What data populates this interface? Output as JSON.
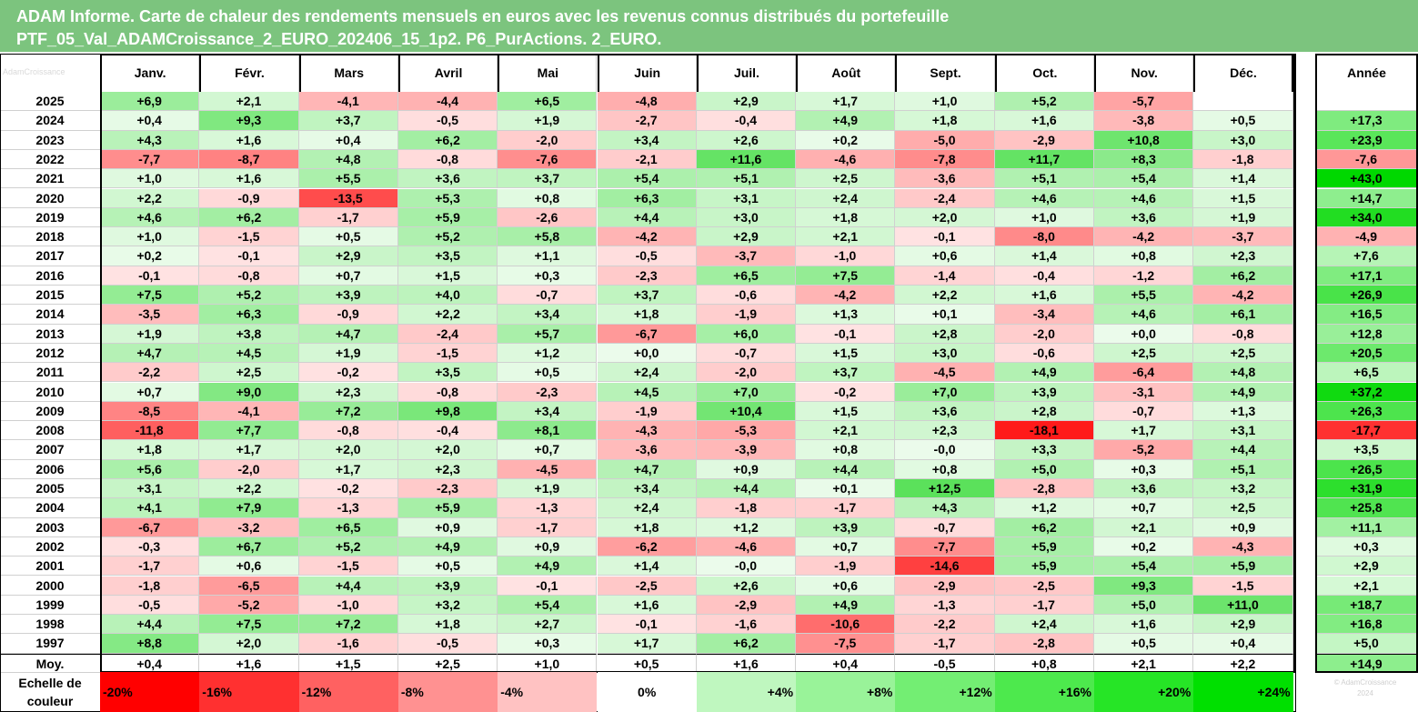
{
  "title": {
    "line1": "ADAM Informe. Carte de chaleur des rendements mensuels en euros avec les revenus connus distribués du portefeuille",
    "line2": "PTF_05_Val_ADAMCroissance_2_EURO_202406_15_1p2. P6_PurActions. 2_EURO."
  },
  "watermark": "AdamCroissance",
  "chart_data": {
    "type": "heatmap",
    "columns": [
      "Janv.",
      "Févr.",
      "Mars",
      "Avril",
      "Mai",
      "Juin",
      "Juil.",
      "Août",
      "Sept.",
      "Oct.",
      "Nov.",
      "Déc.",
      "Année"
    ],
    "rows": [
      {
        "year": "2025",
        "values": [
          "+6,9",
          "+2,1",
          "-4,1",
          "-4,4",
          "+6,5",
          "-4,8",
          "+2,9",
          "+1,7",
          "+1,0",
          "+5,2",
          "-5,7",
          "",
          ""
        ]
      },
      {
        "year": "2024",
        "values": [
          "+0,4",
          "+9,3",
          "+3,7",
          "-0,5",
          "+1,9",
          "-2,7",
          "-0,4",
          "+4,9",
          "+1,8",
          "+1,6",
          "-3,8",
          "+0,5",
          "+17,3"
        ]
      },
      {
        "year": "2023",
        "values": [
          "+4,3",
          "+1,6",
          "+0,4",
          "+6,2",
          "-2,0",
          "+3,4",
          "+2,6",
          "+0,2",
          "-5,0",
          "-2,9",
          "+10,8",
          "+3,0",
          "+23,9"
        ]
      },
      {
        "year": "2022",
        "values": [
          "-7,7",
          "-8,7",
          "+4,8",
          "-0,8",
          "-7,6",
          "-2,1",
          "+11,6",
          "-4,6",
          "-7,8",
          "+11,7",
          "+8,3",
          "-1,8",
          "-7,6"
        ]
      },
      {
        "year": "2021",
        "values": [
          "+1,0",
          "+1,6",
          "+5,5",
          "+3,6",
          "+3,7",
          "+5,4",
          "+5,1",
          "+2,5",
          "-3,6",
          "+5,1",
          "+5,4",
          "+1,4",
          "+43,0"
        ]
      },
      {
        "year": "2020",
        "values": [
          "+2,2",
          "-0,9",
          "-13,5",
          "+5,3",
          "+0,8",
          "+6,3",
          "+3,1",
          "+2,4",
          "-2,4",
          "+4,6",
          "+4,6",
          "+1,5",
          "+14,7"
        ]
      },
      {
        "year": "2019",
        "values": [
          "+4,6",
          "+6,2",
          "-1,7",
          "+5,9",
          "-2,6",
          "+4,4",
          "+3,0",
          "+1,8",
          "+2,0",
          "+1,0",
          "+3,6",
          "+1,9",
          "+34,0"
        ]
      },
      {
        "year": "2018",
        "values": [
          "+1,0",
          "-1,5",
          "+0,5",
          "+5,2",
          "+5,8",
          "-4,2",
          "+2,9",
          "+2,1",
          "-0,1",
          "-8,0",
          "-4,2",
          "-3,7",
          "-4,9"
        ]
      },
      {
        "year": "2017",
        "values": [
          "+0,2",
          "-0,1",
          "+2,9",
          "+3,5",
          "+1,1",
          "-0,5",
          "-3,7",
          "-1,0",
          "+0,6",
          "+1,4",
          "+0,8",
          "+2,3",
          "+7,6"
        ]
      },
      {
        "year": "2016",
        "values": [
          "-0,1",
          "-0,8",
          "+0,7",
          "+1,5",
          "+0,3",
          "-2,3",
          "+6,5",
          "+7,5",
          "-1,4",
          "-0,4",
          "-1,2",
          "+6,2",
          "+17,1"
        ]
      },
      {
        "year": "2015",
        "values": [
          "+7,5",
          "+5,2",
          "+3,9",
          "+4,0",
          "-0,7",
          "+3,7",
          "-0,6",
          "-4,2",
          "+2,2",
          "+1,6",
          "+5,5",
          "-4,2",
          "+26,9"
        ]
      },
      {
        "year": "2014",
        "values": [
          "-3,5",
          "+6,3",
          "-0,9",
          "+2,2",
          "+3,4",
          "+1,8",
          "-1,9",
          "+1,3",
          "+0,1",
          "-3,4",
          "+4,6",
          "+6,1",
          "+16,5"
        ]
      },
      {
        "year": "2013",
        "values": [
          "+1,9",
          "+3,8",
          "+4,7",
          "-2,4",
          "+5,7",
          "-6,7",
          "+6,0",
          "-0,1",
          "+2,8",
          "-2,0",
          "+0,0",
          "-0,8",
          "+12,8"
        ]
      },
      {
        "year": "2012",
        "values": [
          "+4,7",
          "+4,5",
          "+1,9",
          "-1,5",
          "+1,2",
          "+0,0",
          "-0,7",
          "+1,5",
          "+3,0",
          "-0,6",
          "+2,5",
          "+2,5",
          "+20,5"
        ]
      },
      {
        "year": "2011",
        "values": [
          "-2,2",
          "+2,5",
          "-0,2",
          "+3,5",
          "+0,5",
          "+2,4",
          "-2,0",
          "+3,7",
          "-4,5",
          "+4,9",
          "-6,4",
          "+4,8",
          "+6,5"
        ]
      },
      {
        "year": "2010",
        "values": [
          "+0,7",
          "+9,0",
          "+2,3",
          "-0,8",
          "-2,3",
          "+4,5",
          "+7,0",
          "-0,2",
          "+7,0",
          "+3,9",
          "-3,1",
          "+4,9",
          "+37,2"
        ]
      },
      {
        "year": "2009",
        "values": [
          "-8,5",
          "-4,1",
          "+7,2",
          "+9,8",
          "+3,4",
          "-1,9",
          "+10,4",
          "+1,5",
          "+3,6",
          "+2,8",
          "-0,7",
          "+1,3",
          "+26,3"
        ]
      },
      {
        "year": "2008",
        "values": [
          "-11,8",
          "+7,7",
          "-0,8",
          "-0,4",
          "+8,1",
          "-4,3",
          "-5,3",
          "+2,1",
          "+2,3",
          "-18,1",
          "+1,7",
          "+3,1",
          "-17,7"
        ]
      },
      {
        "year": "2007",
        "values": [
          "+1,8",
          "+1,7",
          "+2,0",
          "+2,0",
          "+0,7",
          "-3,6",
          "-3,9",
          "+0,8",
          "-0,0",
          "+3,3",
          "-5,2",
          "+4,4",
          "+3,5"
        ]
      },
      {
        "year": "2006",
        "values": [
          "+5,6",
          "-2,0",
          "+1,7",
          "+2,3",
          "-4,5",
          "+4,7",
          "+0,9",
          "+4,4",
          "+0,8",
          "+5,0",
          "+0,3",
          "+5,1",
          "+26,5"
        ]
      },
      {
        "year": "2005",
        "values": [
          "+3,1",
          "+2,2",
          "-0,2",
          "-2,3",
          "+1,9",
          "+3,4",
          "+4,4",
          "+0,1",
          "+12,5",
          "-2,8",
          "+3,6",
          "+3,2",
          "+31,9"
        ]
      },
      {
        "year": "2004",
        "values": [
          "+4,1",
          "+7,9",
          "-1,3",
          "+5,9",
          "-1,3",
          "+2,4",
          "-1,8",
          "-1,7",
          "+4,3",
          "+1,2",
          "+0,7",
          "+2,5",
          "+25,8"
        ]
      },
      {
        "year": "2003",
        "values": [
          "-6,7",
          "-3,2",
          "+6,5",
          "+0,9",
          "-1,7",
          "+1,8",
          "+1,2",
          "+3,9",
          "-0,7",
          "+6,2",
          "+2,1",
          "+0,9",
          "+11,1"
        ]
      },
      {
        "year": "2002",
        "values": [
          "-0,3",
          "+6,7",
          "+5,2",
          "+4,9",
          "+0,9",
          "-6,2",
          "-4,6",
          "+0,7",
          "-7,7",
          "+5,9",
          "+0,2",
          "-4,3",
          "+0,3"
        ]
      },
      {
        "year": "2001",
        "values": [
          "-1,7",
          "+0,6",
          "-1,5",
          "+0,5",
          "+4,9",
          "+1,4",
          "-0,0",
          "-1,9",
          "-14,6",
          "+5,9",
          "+5,4",
          "+5,9",
          "+2,9"
        ]
      },
      {
        "year": "2000",
        "values": [
          "-1,8",
          "-6,5",
          "+4,4",
          "+3,9",
          "-0,1",
          "-2,5",
          "+2,6",
          "+0,6",
          "-2,9",
          "-2,5",
          "+9,3",
          "-1,5",
          "+2,1"
        ]
      },
      {
        "year": "1999",
        "values": [
          "-0,5",
          "-5,2",
          "-1,0",
          "+3,2",
          "+5,4",
          "+1,6",
          "-2,9",
          "+4,9",
          "-1,3",
          "-1,7",
          "+5,0",
          "+11,0",
          "+18,7"
        ]
      },
      {
        "year": "1998",
        "values": [
          "+4,4",
          "+7,5",
          "+7,2",
          "+1,8",
          "+2,7",
          "-0,1",
          "-1,6",
          "-10,6",
          "-2,2",
          "+2,4",
          "+1,6",
          "+2,9",
          "+16,8"
        ]
      },
      {
        "year": "1997",
        "values": [
          "+8,8",
          "+2,0",
          "-1,6",
          "-0,5",
          "+0,3",
          "+1,7",
          "+6,2",
          "-7,5",
          "-1,7",
          "-2,8",
          "+0,5",
          "+0,4",
          "+5,0"
        ]
      }
    ],
    "average": {
      "label": "Moy.",
      "values": [
        "+0,4",
        "+1,6",
        "+1,5",
        "+2,5",
        "+1,0",
        "+0,5",
        "+1,6",
        "+0,4",
        "-0,5",
        "+0,8",
        "+2,1",
        "+2,2",
        "+14,9"
      ]
    },
    "color_scale": {
      "label": "Echelle de couleur",
      "stops": [
        "-20%",
        "-16%",
        "-12%",
        "-8%",
        "-4%",
        "0%",
        "+4%",
        "+8%",
        "+12%",
        "+16%",
        "+20%",
        "+24%"
      ],
      "stop_values": [
        -20,
        -16,
        -12,
        -8,
        -4,
        0,
        4,
        8,
        12,
        16,
        20,
        24
      ],
      "negative_color": "#ff0000",
      "positive_color": "#00e000",
      "neutral_color": "#ffffff"
    },
    "stamp": "© AdamCroissance\n2024"
  }
}
